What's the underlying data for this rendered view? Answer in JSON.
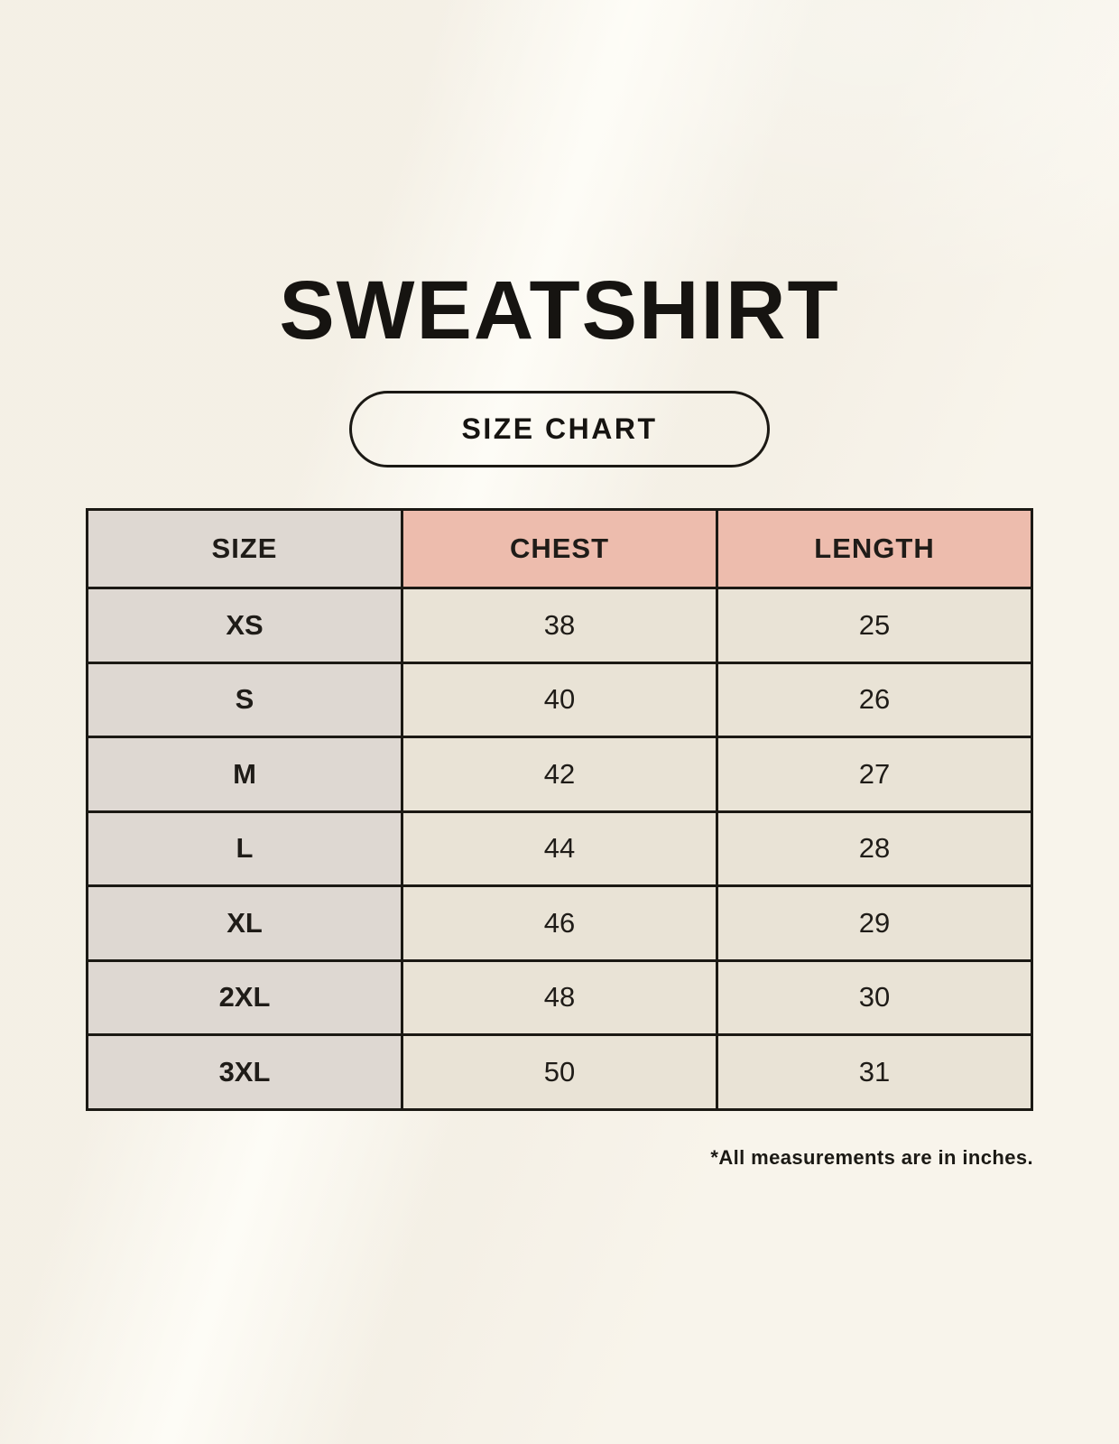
{
  "title": "SWEATSHIRT",
  "size_chart_label": "SIZE CHART",
  "footnote": "*All measurements are in inches.",
  "chart_data": {
    "type": "table",
    "title": "SWEATSHIRT",
    "subtitle": "SIZE CHART",
    "columns": [
      "SIZE",
      "CHEST",
      "LENGTH"
    ],
    "rows": [
      [
        "XS",
        "38",
        "25"
      ],
      [
        "S",
        "40",
        "26"
      ],
      [
        "M",
        "42",
        "27"
      ],
      [
        "L",
        "44",
        "28"
      ],
      [
        "XL",
        "46",
        "29"
      ],
      [
        "2XL",
        "48",
        "30"
      ],
      [
        "3XL",
        "50",
        "31"
      ]
    ],
    "units": "inches",
    "note": "*All measurements are in inches."
  },
  "colors": {
    "background": "#F8F4EB",
    "header_accent": "#EDBCAD",
    "size_column": "#DED8D2",
    "data_cell": "#E9E3D6",
    "border": "#1B1914",
    "text": "#161411"
  }
}
